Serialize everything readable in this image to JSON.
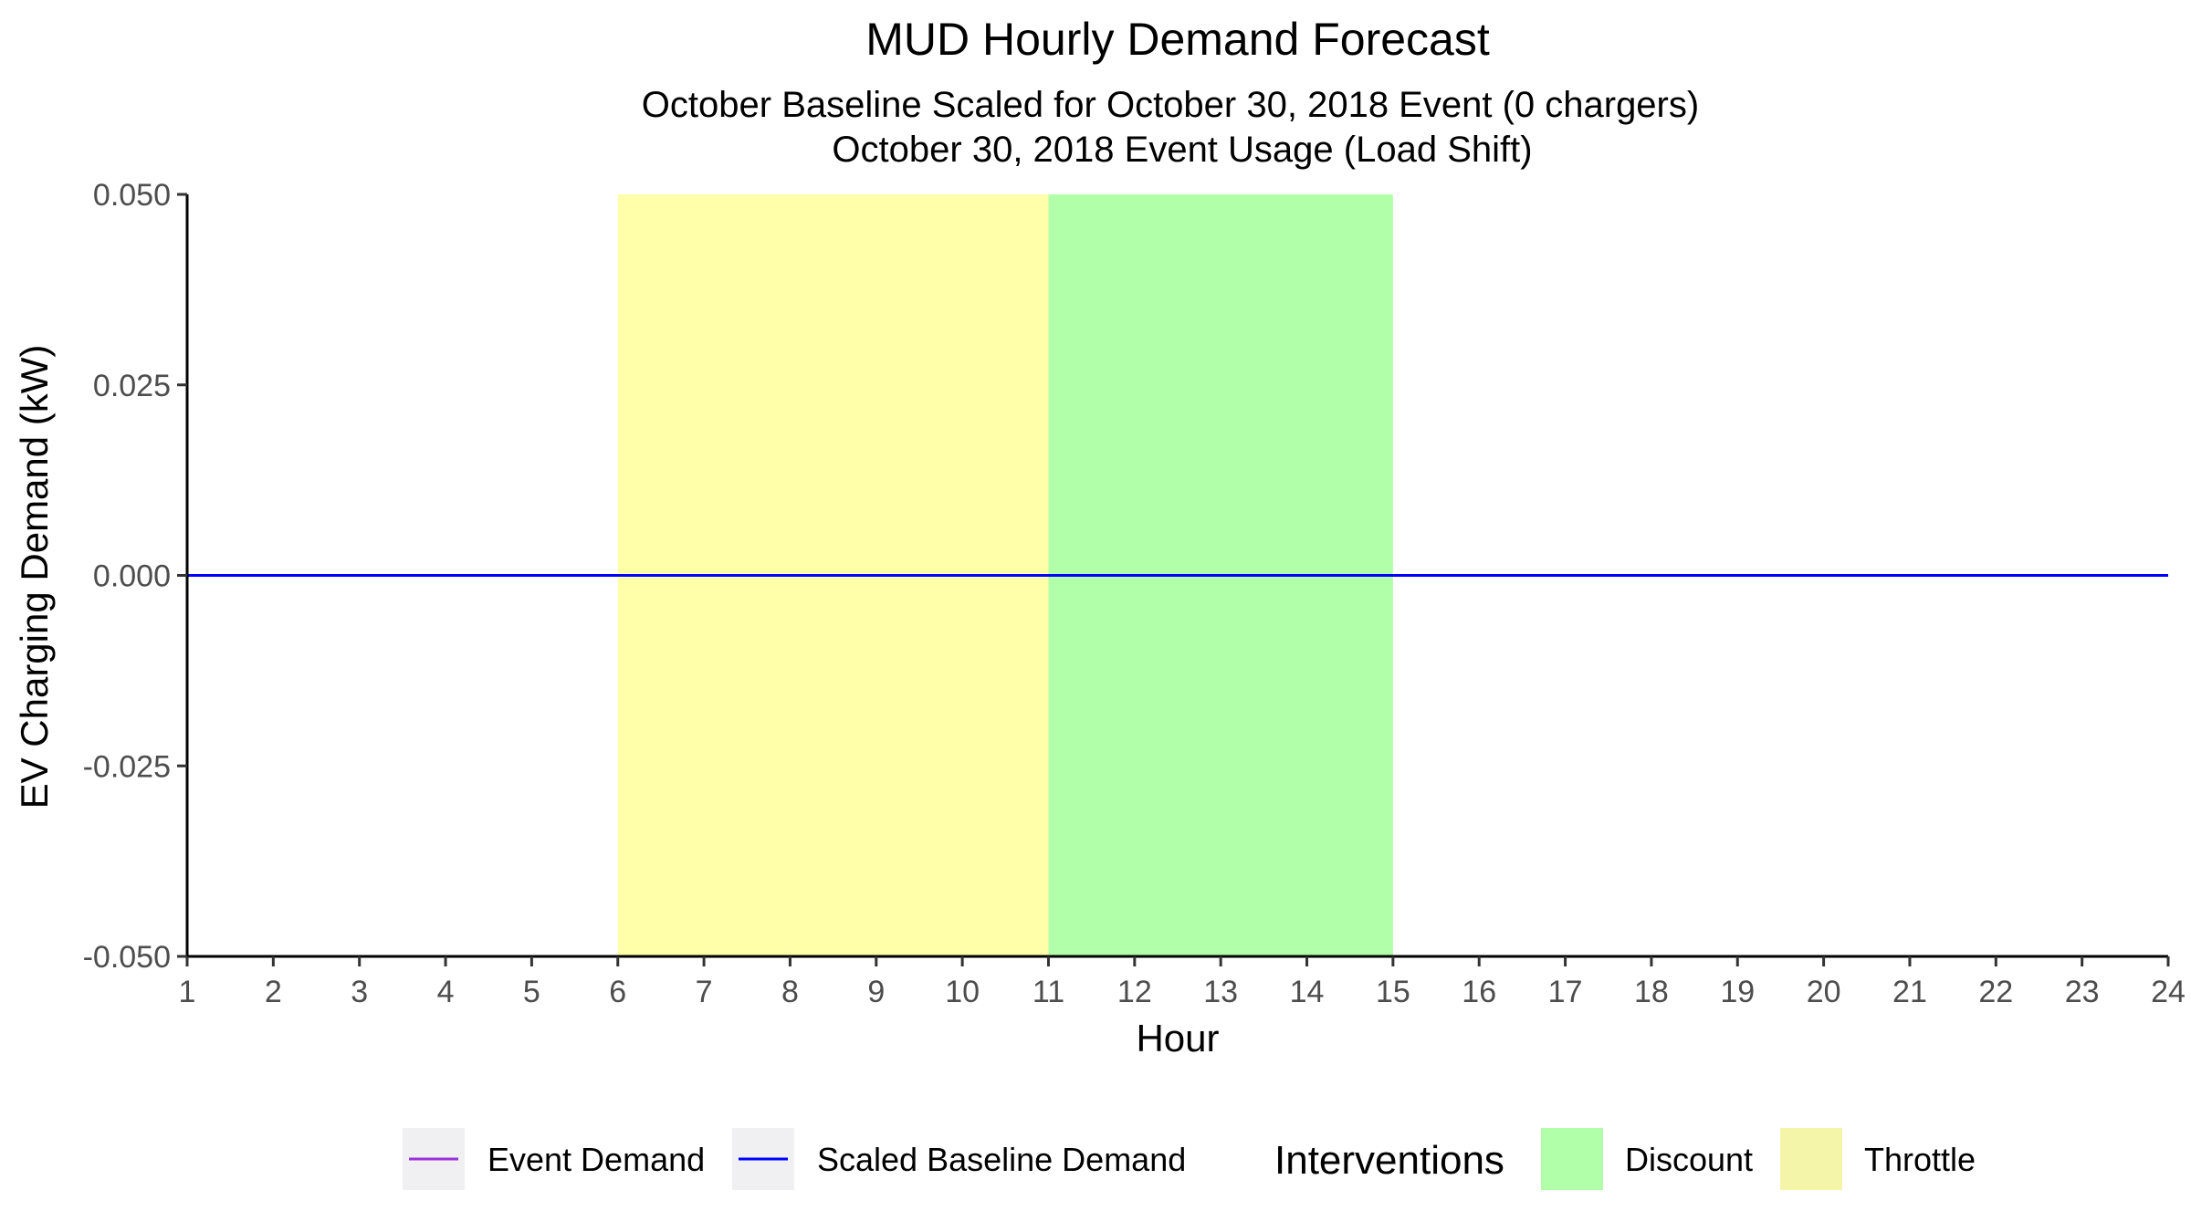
{
  "chart_data": {
    "type": "line",
    "title": "MUD Hourly Demand Forecast",
    "subtitle_lines": [
      "October Baseline Scaled for October 30, 2018 Event (0 chargers)",
      "October 30, 2018 Event Usage (Load Shift)"
    ],
    "xlabel": "Hour",
    "ylabel": "EV Charging Demand (kW)",
    "xlim": [
      1,
      24
    ],
    "ylim": [
      -0.05,
      0.05
    ],
    "x_ticks": [
      "1",
      "2",
      "3",
      "4",
      "5",
      "6",
      "7",
      "8",
      "9",
      "10",
      "11",
      "12",
      "13",
      "14",
      "15",
      "16",
      "17",
      "18",
      "19",
      "20",
      "21",
      "22",
      "23",
      "24"
    ],
    "y_ticks": [
      {
        "value": 0.05,
        "label": "0.050"
      },
      {
        "value": 0.025,
        "label": "0.025"
      },
      {
        "value": 0.0,
        "label": "0.000"
      },
      {
        "value": -0.025,
        "label": "-0.025"
      },
      {
        "value": -0.05,
        "label": "-0.050"
      }
    ],
    "x": [
      1,
      2,
      3,
      4,
      5,
      6,
      7,
      8,
      9,
      10,
      11,
      12,
      13,
      14,
      15,
      16,
      17,
      18,
      19,
      20,
      21,
      22,
      23,
      24
    ],
    "series": [
      {
        "name": "Event Demand",
        "color": "#9b30d9",
        "values": [
          0,
          0,
          0,
          0,
          0,
          0,
          0,
          0,
          0,
          0,
          0,
          0,
          0,
          0,
          0,
          0,
          0,
          0,
          0,
          0,
          0,
          0,
          0,
          0
        ]
      },
      {
        "name": "Scaled Baseline Demand",
        "color": "#0000ff",
        "values": [
          0,
          0,
          0,
          0,
          0,
          0,
          0,
          0,
          0,
          0,
          0,
          0,
          0,
          0,
          0,
          0,
          0,
          0,
          0,
          0,
          0,
          0,
          0,
          0
        ]
      }
    ],
    "interventions": {
      "legend_title": "Interventions",
      "regions": [
        {
          "name": "Throttle",
          "start": 6,
          "end": 11,
          "color": "#ffffaa"
        },
        {
          "name": "Discount",
          "start": 11,
          "end": 15,
          "color": "#b2ffaa"
        }
      ],
      "legend_items": [
        {
          "name": "Discount",
          "color": "#b2ffaa"
        },
        {
          "name": "Throttle",
          "color": "#f5f5aa"
        }
      ]
    },
    "legend_position": "bottom",
    "grid": false
  }
}
